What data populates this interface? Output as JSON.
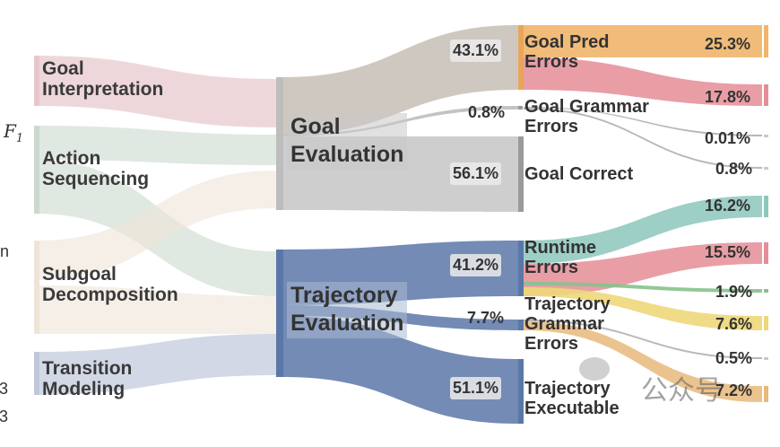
{
  "left_nodes": [
    {
      "id": "goal-interp",
      "label": "Goal\nInterpretation",
      "color": "#e7c6cb"
    },
    {
      "id": "action-seq",
      "label": "Action\nSequencing",
      "color": "#cbd9cf"
    },
    {
      "id": "subgoal-dec",
      "label": "Subgoal\nDecomposition",
      "color": "#efe4d8"
    },
    {
      "id": "transition-mod",
      "label": "Transition\nModeling",
      "color": "#bfc8da"
    }
  ],
  "mid_nodes": [
    {
      "id": "goal-eval",
      "label": "Goal\nEvaluation",
      "color": "#bdbdbd"
    },
    {
      "id": "traj-eval",
      "label": "Trajectory\nEvaluation",
      "color": "#5a77a8"
    }
  ],
  "outcomes": [
    {
      "id": "goal-pred-errors",
      "label": "Goal Pred\nErrors",
      "pct": "43.1%",
      "color": "#e9a55a"
    },
    {
      "id": "goal-grammar-errors",
      "label": "Goal Grammar\nErrors",
      "pct": "0.8%",
      "color": "#c9c9c9"
    },
    {
      "id": "goal-correct",
      "label": "Goal Correct",
      "pct": "56.1%",
      "color": "#bdbdbd"
    },
    {
      "id": "runtime-errors",
      "label": "Runtime\nErrors",
      "pct": "41.2%",
      "color": "#5a77a8"
    },
    {
      "id": "traj-grammar-errors",
      "label": "Trajectory\nGrammar\nErrors",
      "pct": "7.7%",
      "color": "#5a77a8"
    },
    {
      "id": "traj-executable",
      "label": "Trajectory\nExecutable",
      "pct": "51.1%",
      "color": "#5a77a8"
    }
  ],
  "leaves": [
    {
      "pct": "25.3%",
      "color": "#f0b56a"
    },
    {
      "pct": "17.8%",
      "color": "#e58d97"
    },
    {
      "pct": "0.01%",
      "color": "#c9c9c9"
    },
    {
      "pct": "0.8%",
      "color": "#c9c9c9"
    },
    {
      "pct": "16.2%",
      "color": "#8cc7bc"
    },
    {
      "pct": "15.5%",
      "color": "#e58d97"
    },
    {
      "pct": "1.9%",
      "color": "#86c28c"
    },
    {
      "pct": "7.6%",
      "color": "#eed77a"
    },
    {
      "pct": "0.5%",
      "color": "#c9c9c9"
    },
    {
      "pct": "7.2%",
      "color": "#e8b97a"
    }
  ],
  "left_margin": {
    "f1": "F",
    "f1_sub": "1",
    "frag_n": "n",
    "frag_3a": "3",
    "frag_3b": "3"
  },
  "watermark": "公众号"
}
